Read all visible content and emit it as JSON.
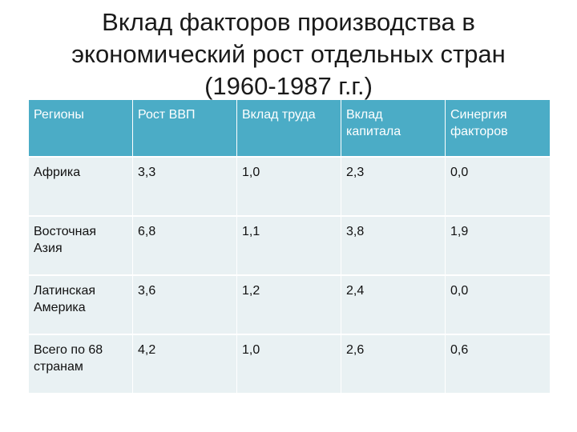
{
  "title": {
    "line1": "Вклад факторов производства в",
    "line2": "экономический рост отдельных стран",
    "line3": "(1960-1987 г.г.)"
  },
  "table": {
    "headers": [
      "Регионы",
      "Рост ВВП",
      "Вклад труда",
      "Вклад капитала",
      "Синергия факторов"
    ],
    "rows": [
      [
        "Африка",
        "3,3",
        "1,0",
        "2,3",
        "0,0"
      ],
      [
        "Восточная Азия",
        "6,8",
        "1,1",
        "3,8",
        "1,9"
      ],
      [
        "Латинская Америка",
        "3,6",
        "1,2",
        "2,4",
        "0,0"
      ],
      [
        "Всего по 68 странам",
        "4,2",
        "1,0",
        "2,6",
        "0,6"
      ]
    ]
  },
  "colors": {
    "header_bg": "#4bacc6",
    "row_bg": "#e9f1f3",
    "header_text": "#ffffff"
  }
}
